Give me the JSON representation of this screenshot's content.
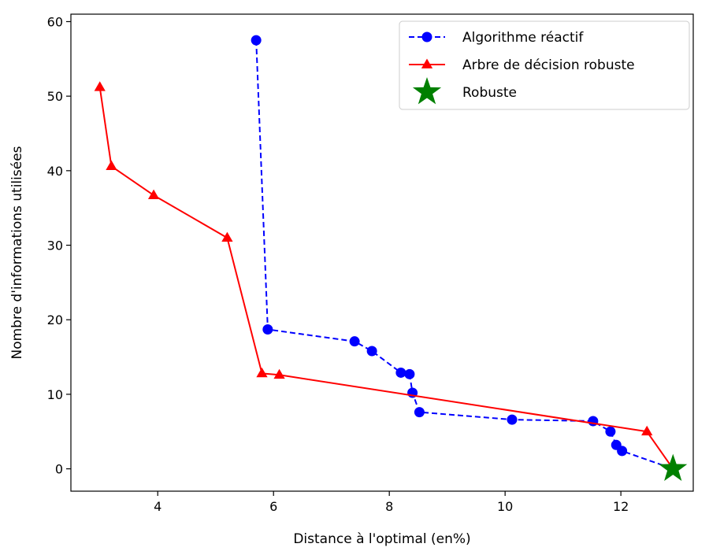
{
  "chart_data": {
    "type": "line",
    "xlabel": "Distance à l'optimal (en%)",
    "ylabel": "Nombre d'informations utilisées",
    "xlim": [
      2.5,
      13.25
    ],
    "ylim": [
      -3,
      61
    ],
    "xticks": [
      4,
      6,
      8,
      10,
      12
    ],
    "yticks": [
      0,
      10,
      20,
      30,
      40,
      50,
      60
    ],
    "grid": false,
    "legend_position": "top-right",
    "series": [
      {
        "name": "Algorithme réactif",
        "color": "#0000ff",
        "line_style": "dashed",
        "marker": "circle",
        "x": [
          5.7,
          5.9,
          7.4,
          7.7,
          8.2,
          8.35,
          8.4,
          8.52,
          10.12,
          11.52,
          11.82,
          11.92,
          12.02,
          12.9
        ],
        "y": [
          57.5,
          18.7,
          17.1,
          15.8,
          12.9,
          12.7,
          10.2,
          7.6,
          6.6,
          6.4,
          5.0,
          3.2,
          2.4,
          0
        ]
      },
      {
        "name": "Arbre de décision robuste",
        "color": "#ff0000",
        "line_style": "solid",
        "marker": "triangle",
        "x": [
          3.0,
          3.2,
          3.93,
          5.2,
          5.8,
          6.1,
          12.45,
          12.9
        ],
        "y": [
          51.2,
          40.6,
          36.7,
          31.0,
          12.8,
          12.6,
          5.0,
          0
        ]
      },
      {
        "name": "Robuste",
        "color": "#008000",
        "marker": "star",
        "x": [
          12.9
        ],
        "y": [
          0
        ]
      }
    ]
  }
}
